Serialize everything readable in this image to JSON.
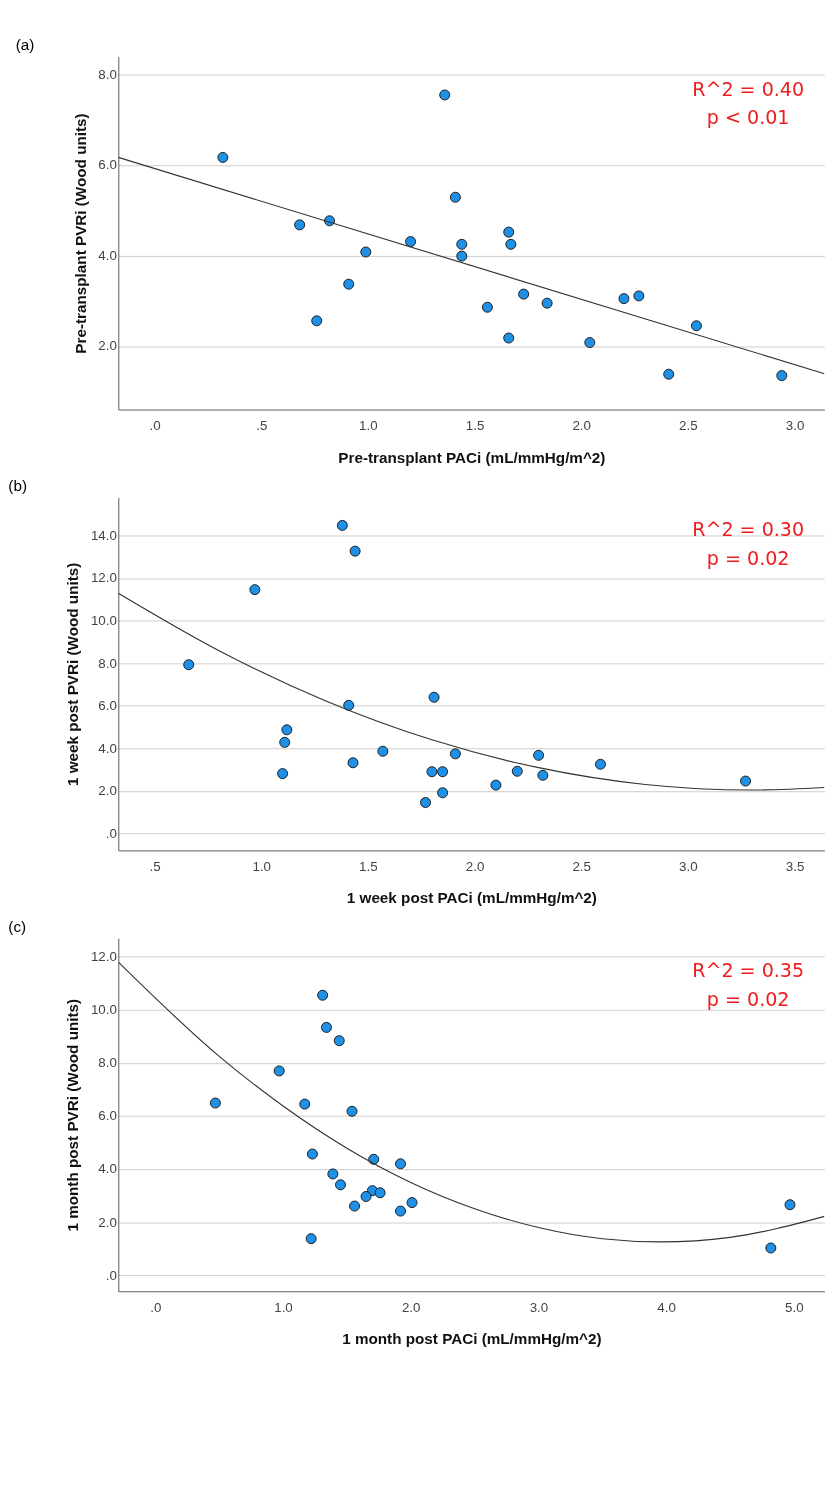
{
  "chart_data": [
    {
      "type": "scatter",
      "title": "(a)",
      "xlabel": "Pre-transplant PACi (mL/mmHg/m^2)",
      "ylabel": "Pre-transplant PVRi (Wood units)",
      "series": [
        {
          "color": "#1e90e6",
          "x": [
            0.32,
            1.36,
            1.41,
            0.68,
            0.82,
            1.2,
            0.99,
            0.91,
            0.76,
            1.66,
            1.44,
            1.67,
            1.44,
            1.73,
            1.84,
            1.56,
            1.66,
            2.2,
            2.27,
            2.54,
            2.04,
            2.41,
            2.94
          ],
          "values": [
            6.17,
            7.55,
            5.29,
            4.68,
            4.77,
            4.31,
            4.08,
            3.37,
            2.56,
            4.52,
            4.25,
            4.25,
            3.99,
            3.15,
            2.95,
            2.86,
            2.18,
            3.05,
            3.11,
            2.45,
            2.08,
            1.38,
            1.35
          ]
        },
        {
          "type": "line",
          "color": "#333333",
          "line_style": "solid",
          "marker": "none",
          "x": [
            -0.17,
            3.14
          ],
          "values": [
            6.17,
            1.39
          ]
        }
      ],
      "xlim": [
        -0.17,
        3.14
      ],
      "ylim": [
        0.6,
        8.4
      ],
      "xticks": [
        {
          "value": 0,
          "label": ".0"
        },
        {
          "value": 0.5,
          "label": ".5"
        },
        {
          "value": 1,
          "label": "1.0"
        },
        {
          "value": 1.5,
          "label": "1.5"
        },
        {
          "value": 2,
          "label": "2.0"
        },
        {
          "value": 2.5,
          "label": "2.5"
        },
        {
          "value": 3,
          "label": "3.0"
        }
      ],
      "yticks": [
        {
          "value": 2,
          "label": "2.0"
        },
        {
          "value": 4,
          "label": "4.0"
        },
        {
          "value": 6,
          "label": "6.0"
        },
        {
          "value": 8,
          "label": "8.0"
        }
      ],
      "grid": "y",
      "marker": "circle",
      "annotations": [
        "R^2 = 0.40",
        "p < 0.01"
      ]
    },
    {
      "type": "scatter",
      "title": "(b)",
      "xlabel": "1 week post PACi (mL/mmHg/m^2)",
      "ylabel": "1 week post PVRi (Wood units)",
      "series": [
        {
          "color": "#1e90e6",
          "x": [
            1.38,
            1.44,
            0.97,
            0.66,
            1.41,
            1.81,
            1.12,
            1.11,
            1.1,
            1.43,
            1.57,
            1.91,
            1.8,
            1.85,
            1.85,
            1.77,
            2.1,
            2.2,
            2.3,
            2.32,
            2.59,
            3.27
          ],
          "values": [
            14.48,
            13.27,
            11.46,
            7.93,
            6.02,
            6.4,
            4.87,
            4.28,
            2.81,
            3.32,
            3.86,
            3.74,
            2.9,
            2.9,
            1.91,
            1.45,
            2.27,
            2.92,
            3.67,
            2.73,
            3.25,
            2.46
          ]
        },
        {
          "type": "line",
          "color": "#333333",
          "line_style": "solid",
          "marker": "none",
          "x": [
            0.33,
            0.8,
            1.3,
            1.8,
            2.3,
            2.8,
            3.3,
            3.64
          ],
          "values": [
            11.29,
            8.6,
            6.24,
            4.4,
            3.09,
            2.3,
            2.04,
            2.16
          ]
        }
      ],
      "xlim": [
        0.33,
        3.64
      ],
      "ylim": [
        -0.8,
        15.8
      ],
      "xticks": [
        {
          "value": 0.5,
          "label": ".5"
        },
        {
          "value": 1,
          "label": "1.0"
        },
        {
          "value": 1.5,
          "label": "1.5"
        },
        {
          "value": 2,
          "label": "2.0"
        },
        {
          "value": 2.5,
          "label": "2.5"
        },
        {
          "value": 3,
          "label": "3.0"
        },
        {
          "value": 3.5,
          "label": "3.5"
        }
      ],
      "yticks": [
        {
          "value": 0,
          "label": ".0"
        },
        {
          "value": 2,
          "label": "2.0"
        },
        {
          "value": 4,
          "label": "4.0"
        },
        {
          "value": 6,
          "label": "6.0"
        },
        {
          "value": 8,
          "label": "8.0"
        },
        {
          "value": 10,
          "label": "10.0"
        },
        {
          "value": 12,
          "label": "12.0"
        },
        {
          "value": 14,
          "label": "14.0"
        }
      ],
      "grid": "y",
      "marker": "circle",
      "annotations": [
        "R^2 = 0.30",
        "p = 0.02"
      ]
    },
    {
      "type": "scatter",
      "title": "(c)",
      "xlabel": "1 month post PACi (mL/mmHg/m^2)",
      "ylabel": "1 month post PVRi (Wood units)",
      "series": [
        {
          "color": "#1e90e6",
          "x": [
            1.31,
            1.34,
            1.44,
            0.97,
            0.47,
            1.17,
            1.54,
            1.23,
            1.71,
            1.92,
            1.39,
            1.45,
            1.7,
            1.76,
            1.65,
            1.56,
            2.01,
            1.92,
            1.22,
            4.97,
            4.82
          ],
          "values": [
            10.55,
            9.34,
            8.84,
            7.7,
            6.49,
            6.45,
            6.18,
            4.57,
            4.37,
            4.2,
            3.82,
            3.41,
            3.19,
            3.11,
            2.97,
            2.61,
            2.74,
            2.42,
            1.38,
            2.66,
            1.03
          ]
        },
        {
          "type": "line",
          "color": "#333333",
          "line_style": "solid",
          "marker": "none",
          "x": [
            -0.29,
            0.5,
            1.0,
            1.5,
            2.0,
            2.5,
            3.0,
            3.5,
            3.96,
            4.5,
            5.24
          ],
          "values": [
            11.8,
            8.25,
            6.38,
            4.79,
            3.5,
            2.51,
            1.8,
            1.38,
            1.26,
            1.43,
            2.22
          ]
        }
      ],
      "xlim": [
        -0.29,
        5.24
      ],
      "ylim": [
        -0.6,
        12.7
      ],
      "xticks": [
        {
          "value": 0,
          "label": ".0"
        },
        {
          "value": 1,
          "label": "1.0"
        },
        {
          "value": 2,
          "label": "2.0"
        },
        {
          "value": 3,
          "label": "3.0"
        },
        {
          "value": 4,
          "label": "4.0"
        },
        {
          "value": 5,
          "label": "5.0"
        }
      ],
      "yticks": [
        {
          "value": 0,
          "label": ".0"
        },
        {
          "value": 2,
          "label": "2.0"
        },
        {
          "value": 4,
          "label": "4.0"
        },
        {
          "value": 6,
          "label": "6.0"
        },
        {
          "value": 8,
          "label": "8.0"
        },
        {
          "value": 10,
          "label": "10.0"
        },
        {
          "value": 12,
          "label": "12.0"
        }
      ],
      "grid": "y",
      "marker": "circle",
      "annotations": [
        "R^2 = 0.35",
        "p = 0.02"
      ]
    }
  ]
}
